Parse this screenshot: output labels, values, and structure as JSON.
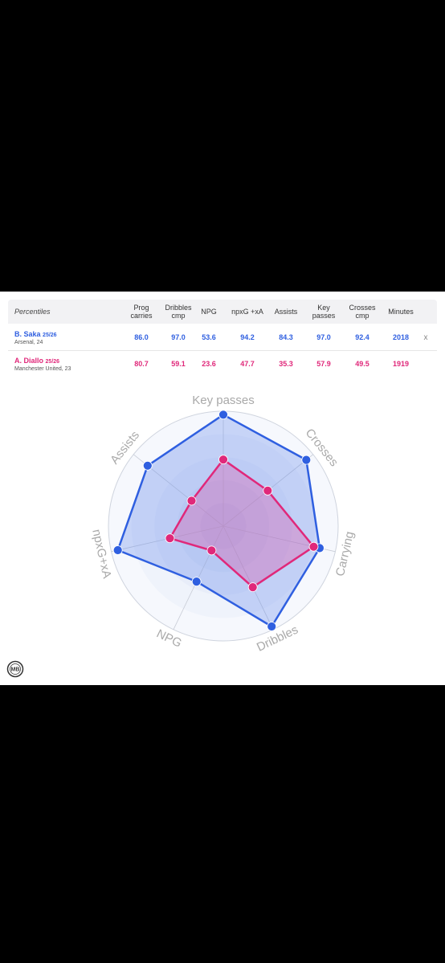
{
  "table": {
    "header_label": "Percentiles",
    "columns": [
      {
        "line1": "Prog",
        "line2": "carries"
      },
      {
        "line1": "Dribbles",
        "line2": "cmp"
      },
      {
        "line1": "NPG",
        "line2": ""
      },
      {
        "line1": "npxG +xA",
        "line2": ""
      },
      {
        "line1": "Assists",
        "line2": ""
      },
      {
        "line1": "Key",
        "line2": "passes"
      },
      {
        "line1": "Crosses",
        "line2": "cmp"
      },
      {
        "line1": "Minutes",
        "line2": ""
      }
    ],
    "players": [
      {
        "name": "B. Saka",
        "season": "25/26",
        "club": "Arsenal, 24",
        "values": [
          "86.0",
          "97.0",
          "53.6",
          "94.2",
          "84.3",
          "97.0",
          "92.4",
          "2018"
        ],
        "remove_label": "x",
        "color": "#2f5fe0"
      },
      {
        "name": "A. Diallo",
        "season": "25/26",
        "club": "Manchester United, 23",
        "values": [
          "80.7",
          "59.1",
          "23.6",
          "47.7",
          "35.3",
          "57.9",
          "49.5",
          "1919"
        ],
        "remove_label": "",
        "color": "#e0287a"
      }
    ]
  },
  "chart_data": {
    "type": "radar",
    "axes": [
      "Key passes",
      "Crosses",
      "Carrying",
      "Dribbles",
      "NPG",
      "npxG+xA",
      "Assists"
    ],
    "range": [
      0,
      100
    ],
    "grid": true,
    "series": [
      {
        "name": "B. Saka",
        "color": "#2f5fe0",
        "values": [
          97.0,
          92.4,
          86.0,
          97.0,
          53.6,
          94.2,
          84.3
        ]
      },
      {
        "name": "A. Diallo",
        "color": "#e0287a",
        "values": [
          57.9,
          49.5,
          80.7,
          59.1,
          23.6,
          47.7,
          35.3
        ]
      }
    ]
  },
  "logo": {
    "text": "MB"
  }
}
